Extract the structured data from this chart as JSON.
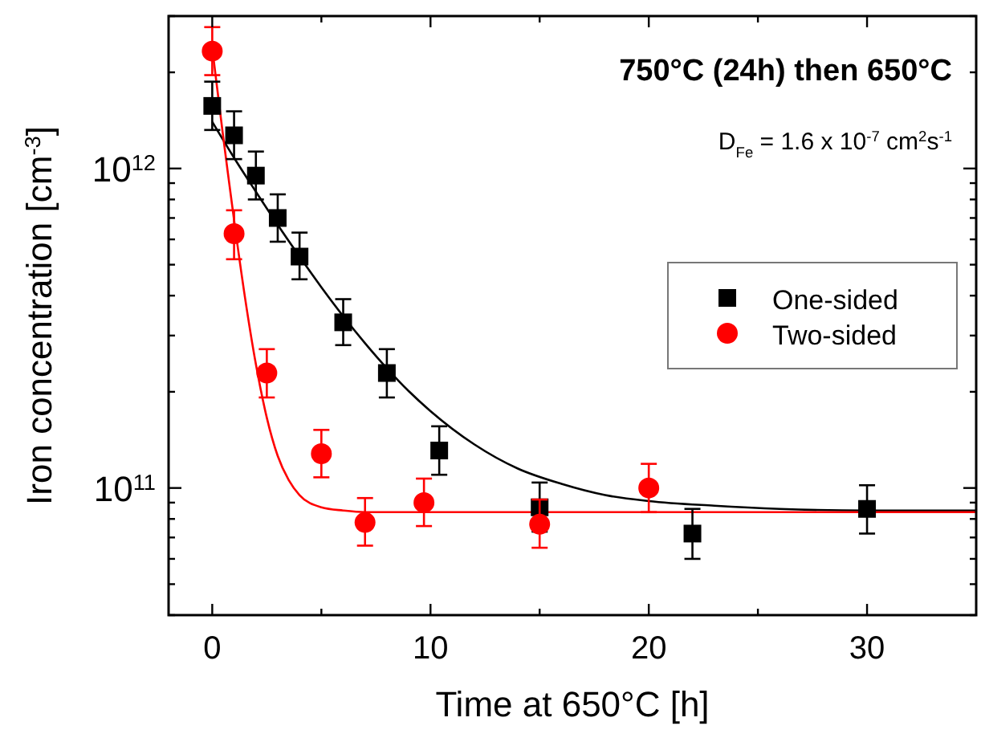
{
  "chart_data": {
    "type": "scatter",
    "title": "750°C (24h) then 650°C",
    "xlabel": "Time at 650°C [h]",
    "ylabel": "Iron concentration [cm$^{-3}$]",
    "annotations": [
      "D$_{Fe}$ = 1.6 x 10$^{-7}$ cm$^{2}$s$^{-1}$"
    ],
    "log": "y",
    "xlim": [
      -2,
      35
    ],
    "ylim": [
      40000000000.0,
      3000000000000.0
    ],
    "xticks": [
      0,
      {
        "value": 5,
        "label": null
      },
      10,
      {
        "value": 15,
        "label": null
      },
      20,
      {
        "value": 25,
        "label": null
      },
      30
    ],
    "yticks": [
      {
        "value": 40000000000.0,
        "label": null
      },
      {
        "value": 50000000000.0,
        "label": null
      },
      {
        "value": 60000000000.0,
        "label": null
      },
      {
        "value": 70000000000.0,
        "label": null
      },
      {
        "value": 80000000000.0,
        "label": null
      },
      {
        "value": 90000000000.0,
        "label": null
      },
      {
        "value": 100000000000.0,
        "label": "10$^{11}$"
      },
      {
        "value": 200000000000.0,
        "label": null
      },
      {
        "value": 300000000000.0,
        "label": null
      },
      {
        "value": 400000000000.0,
        "label": null
      },
      {
        "value": 500000000000.0,
        "label": null
      },
      {
        "value": 600000000000.0,
        "label": null
      },
      {
        "value": 700000000000.0,
        "label": null
      },
      {
        "value": 800000000000.0,
        "label": null
      },
      {
        "value": 900000000000.0,
        "label": null
      },
      {
        "value": 1000000000000.0,
        "label": "10$^{12}$"
      },
      {
        "value": 2000000000000.0,
        "label": null
      },
      {
        "value": 3000000000000.0,
        "label": null
      }
    ],
    "grid": false,
    "legend": "right",
    "series": [
      {
        "name": "One-sided",
        "marker": "square",
        "color": "#000000",
        "x": [
          0,
          1,
          2,
          3,
          4,
          6,
          8,
          10.4,
          15,
          22,
          30
        ],
        "values": [
          1570000000000.0,
          1270000000000.0,
          950000000000.0,
          700000000000.0,
          530000000000.0,
          330000000000.0,
          229000000000.0,
          131000000000.0,
          87000000000.0,
          72000000000.0,
          86000000000.0
        ],
        "errors": [
          [
            1320000000000.0,
            1870000000000.0
          ],
          [
            1070000000000.0,
            1510000000000.0
          ],
          [
            800000000000.0,
            1130000000000.0
          ],
          [
            590000000000.0,
            830000000000.0
          ],
          [
            450000000000.0,
            630000000000.0
          ],
          [
            280000000000.0,
            390000000000.0
          ],
          [
            192000000000.0,
            272000000000.0
          ],
          [
            110000000000.0,
            156000000000.0
          ],
          [
            73000000000.0,
            104000000000.0
          ],
          [
            60000000000.0,
            86000000000.0
          ],
          [
            72000000000.0,
            102000000000.0
          ]
        ]
      },
      {
        "name": "Two-sided",
        "marker": "circle",
        "color": "#ff0000",
        "x": [
          0,
          1,
          2.5,
          5,
          7,
          9.7,
          15,
          20
        ],
        "values": [
          2330000000000.0,
          625000000000.0,
          229000000000.0,
          128000000000.0,
          78000000000.0,
          90000000000.0,
          77000000000.0,
          100000000000.0
        ],
        "errors": [
          [
            1960000000000.0,
            2770000000000.0
          ],
          [
            520000000000.0,
            740000000000.0
          ],
          [
            192000000000.0,
            272000000000.0
          ],
          [
            108000000000.0,
            152000000000.0
          ],
          [
            66000000000.0,
            93000000000.0
          ],
          [
            76000000000.0,
            107000000000.0
          ],
          [
            65000000000.0,
            92000000000.0
          ],
          [
            84000000000.0,
            119000000000.0
          ]
        ]
      },
      {
        "type": "line",
        "marker": "none",
        "color": "#000000",
        "x": [
          0,
          1,
          2,
          3,
          4,
          5,
          6,
          7,
          8,
          9,
          10,
          12,
          14,
          16,
          18,
          20,
          23,
          26,
          30,
          35
        ],
        "values": [
          1400000000000.0,
          1080000000000.0,
          846000000000.0,
          666000000000.0,
          530000000000.0,
          425000000000.0,
          345000000000.0,
          284000000000.0,
          237000000000.0,
          201000000000.0,
          174000000000.0,
          137000000000.0,
          115000000000.0,
          103000000000.0,
          95000000000.0,
          91000000000.0,
          88000000000.0,
          86000000000.0,
          85000000000.0,
          85000000000.0
        ]
      },
      {
        "type": "line",
        "marker": "none",
        "color": "#ff0000",
        "x": [
          0,
          0.25,
          0.5,
          0.75,
          1,
          1.5,
          2,
          2.5,
          3,
          3.5,
          4,
          5,
          6,
          7,
          10,
          15,
          35
        ],
        "values": [
          2380000000000.0,
          1730000000000.0,
          1260000000000.0,
          930000000000.0,
          690000000000.0,
          395000000000.0,
          244000000000.0,
          166000000000.0,
          126000000000.0,
          106000000000.0,
          95000000000.0,
          87000000000.0,
          85000000000.0,
          84000000000.0,
          84000000000.0,
          84000000000.0,
          84000000000.0
        ]
      }
    ]
  }
}
